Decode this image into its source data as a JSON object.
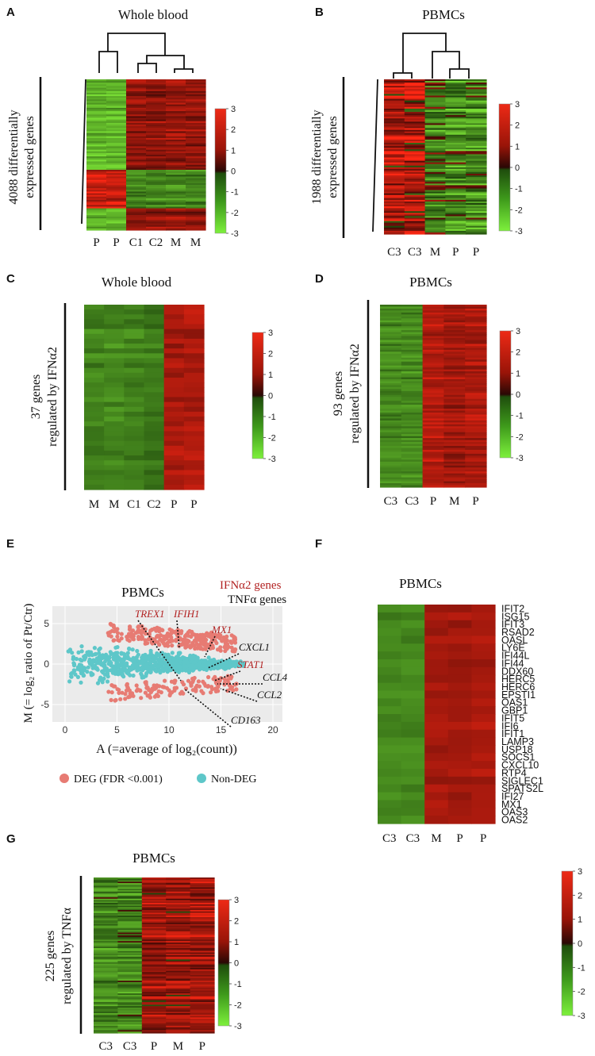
{
  "panels": {
    "A": {
      "letter": "A",
      "title": "Whole blood",
      "ylabel_line1": "4088 differentially",
      "ylabel_line2": "expressed genes",
      "columns": [
        "P",
        "P",
        "C1",
        "C2",
        "M",
        "M"
      ],
      "scale": [
        "3",
        "2",
        "1",
        "0",
        "-1",
        "-2",
        "-3"
      ]
    },
    "B": {
      "letter": "B",
      "title": "PBMCs",
      "ylabel_line1": "1988 differentially",
      "ylabel_line2": "expressed genes",
      "columns": [
        "C3",
        "C3",
        "M",
        "P",
        "P"
      ],
      "scale": [
        "3",
        "2",
        "1",
        "0",
        "-1",
        "-2",
        "-3"
      ]
    },
    "C": {
      "letter": "C",
      "title": "Whole blood",
      "ylabel_line1": "37 genes",
      "ylabel_line2": "regulated by IFNα2",
      "columns": [
        "M",
        "M",
        "C1",
        "C2",
        "P",
        "P"
      ],
      "scale": [
        "3",
        "2",
        "1",
        "0",
        "-1",
        "-2",
        "-3"
      ]
    },
    "D": {
      "letter": "D",
      "title": "PBMCs",
      "ylabel_line1": "93 genes",
      "ylabel_line2": "regulated by IFNα2",
      "columns": [
        "C3",
        "C3",
        "P",
        "M",
        "P"
      ],
      "scale": [
        "3",
        "2",
        "1",
        "0",
        "-1",
        "-2",
        "-3"
      ]
    },
    "E": {
      "letter": "E",
      "title": "PBMCs",
      "legend_ifn": "IFNα2 genes",
      "legend_tnf": "TNFα genes",
      "ylabel": "M (= log₂ ratio of Pt/Ctr)",
      "xlabel": "A (=average of log₂(count))",
      "xticks": [
        "0",
        "5",
        "10",
        "15",
        "20"
      ],
      "yticks": [
        "5",
        "0",
        "-5"
      ],
      "deg_label": "DEG (FDR <0.001)",
      "nondeg_label": "Non-DEG",
      "genes_ifn": [
        "TREX1",
        "IFIH1",
        "MX1",
        "STAT1"
      ],
      "genes_tnf": [
        "CXCL1",
        "CCL4",
        "CCL2",
        "CD163"
      ]
    },
    "F": {
      "letter": "F",
      "title": "PBMCs",
      "genes": [
        "IFIT2",
        "ISG15",
        "IFIT3",
        "RSAD2",
        "OASL",
        "LY6E",
        "IFI44L",
        "IFI44",
        "DDX60",
        "HERC5",
        "HERC6",
        "EPSTI1",
        "OAS1",
        "GBP1",
        "IFIT5",
        "IFI6",
        "IFIT1",
        "LAMP3",
        "USP18",
        "SOCS1",
        "CXCL10",
        "RTP4",
        "SIGLEC1",
        "SPATS2L",
        "IFI27",
        "MX1",
        "OAS3",
        "OAS2"
      ],
      "columns": [
        "C3",
        "C3",
        "M",
        "P",
        "P"
      ],
      "scale": [
        "3",
        "2",
        "1",
        "0",
        "-1",
        "-2",
        "-3"
      ]
    },
    "G": {
      "letter": "G",
      "title": "PBMCs",
      "ylabel_line1": "225 genes",
      "ylabel_line2": "regulated by TNFα",
      "columns": [
        "C3",
        "C3",
        "P",
        "M",
        "P"
      ],
      "scale": [
        "3",
        "2",
        "1",
        "0",
        "-1",
        "-2",
        "-3"
      ]
    }
  },
  "colors": {
    "green": "#3f9a1c",
    "darkgreen": "#2f6a12",
    "red": "#a81c0c",
    "darkred": "#5a0a05",
    "deg": "#e77b73",
    "nondeg": "#5ec7c9",
    "accent_red": "#b22222"
  }
}
